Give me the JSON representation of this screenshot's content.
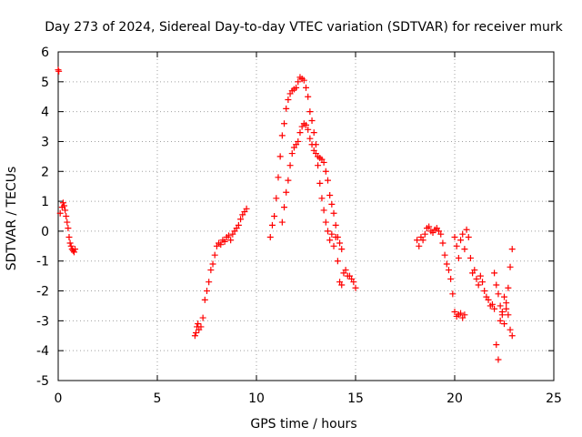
{
  "chart_data": {
    "type": "scatter",
    "title": "Day 273 of 2024, Sidereal Day-to-day VTEC variation (SDTVAR) for receiver murk",
    "xlabel": "GPS time / hours",
    "ylabel": "SDTVAR / TECUs",
    "xlim": [
      0,
      25
    ],
    "ylim": [
      -5,
      6
    ],
    "xticks": [
      0,
      5,
      10,
      15,
      20,
      25
    ],
    "xtick_labels": [
      "0",
      "5",
      "10",
      "15",
      "20",
      "25"
    ],
    "yticks": [
      -5,
      -4,
      -3,
      -2,
      -1,
      0,
      1,
      2,
      3,
      4,
      5,
      6
    ],
    "ytick_labels": [
      "-5",
      "-4",
      "-3",
      "-2",
      "-1",
      "0",
      "1",
      "2",
      "3",
      "4",
      "5",
      "6"
    ],
    "grid": true,
    "marker": "+",
    "color": "#ff0000",
    "series": [
      {
        "name": "SDTVAR",
        "x": [
          0.0,
          0.03,
          0.1,
          0.2,
          0.25,
          0.3,
          0.35,
          0.4,
          0.45,
          0.5,
          0.55,
          0.6,
          0.65,
          0.7,
          0.75,
          0.8,
          0.85,
          6.9,
          6.95,
          7.0,
          7.05,
          7.1,
          7.2,
          7.3,
          7.4,
          7.5,
          7.6,
          7.7,
          7.8,
          7.9,
          8.0,
          8.1,
          8.2,
          8.3,
          8.4,
          8.5,
          8.6,
          8.7,
          8.8,
          8.9,
          9.0,
          9.1,
          9.2,
          9.3,
          9.4,
          9.5,
          10.7,
          10.8,
          10.9,
          11.0,
          11.1,
          11.2,
          11.3,
          11.4,
          11.5,
          11.6,
          11.7,
          11.8,
          11.9,
          12.0,
          12.1,
          12.2,
          12.3,
          12.4,
          12.5,
          12.6,
          12.7,
          12.8,
          12.9,
          13.0,
          13.1,
          13.2,
          13.3,
          13.4,
          13.5,
          13.6,
          13.7,
          13.8,
          13.9,
          14.0,
          14.1,
          14.2,
          14.3,
          14.4,
          14.5,
          14.6,
          14.7,
          14.8,
          14.9,
          15.0,
          11.3,
          11.4,
          11.5,
          11.6,
          11.7,
          11.8,
          11.9,
          12.0,
          12.1,
          12.2,
          12.3,
          12.4,
          12.5,
          12.6,
          12.7,
          12.8,
          12.9,
          13.0,
          13.1,
          13.2,
          13.3,
          13.4,
          13.5,
          13.6,
          13.7,
          13.8,
          13.9,
          14.0,
          14.1,
          14.2,
          14.3,
          18.1,
          18.2,
          18.3,
          18.4,
          18.5,
          18.6,
          18.7,
          18.8,
          18.9,
          19.0,
          19.1,
          19.2,
          19.3,
          19.4,
          19.5,
          19.6,
          19.7,
          19.8,
          19.9,
          20.0,
          20.1,
          20.2,
          20.3,
          20.4,
          20.5,
          20.0,
          20.1,
          20.2,
          20.3,
          20.4,
          20.5,
          20.6,
          20.7,
          20.8,
          20.9,
          21.0,
          21.1,
          21.2,
          21.3,
          21.4,
          21.5,
          21.6,
          21.7,
          21.8,
          21.9,
          22.0,
          22.1,
          22.2,
          22.3,
          22.4,
          22.5,
          22.6,
          22.7,
          22.8,
          22.9,
          22.0,
          22.1,
          22.2,
          22.3,
          22.4,
          22.5,
          22.6,
          22.7,
          22.8,
          22.9
        ],
        "y": [
          5.4,
          5.35,
          0.6,
          0.8,
          0.95,
          0.85,
          0.7,
          0.5,
          0.3,
          0.1,
          -0.2,
          -0.4,
          -0.5,
          -0.6,
          -0.65,
          -0.7,
          -0.6,
          -3.5,
          -3.4,
          -3.2,
          -3.1,
          -3.3,
          -3.2,
          -2.9,
          -2.3,
          -2.0,
          -1.7,
          -1.3,
          -1.1,
          -0.8,
          -0.5,
          -0.4,
          -0.45,
          -0.3,
          -0.35,
          -0.2,
          -0.15,
          -0.3,
          -0.1,
          0.0,
          0.1,
          0.2,
          0.4,
          0.55,
          0.65,
          0.75,
          -0.2,
          0.2,
          0.5,
          1.1,
          1.8,
          2.5,
          3.2,
          3.6,
          4.1,
          4.4,
          4.6,
          4.7,
          4.75,
          4.8,
          5.0,
          5.15,
          5.1,
          5.05,
          4.8,
          4.5,
          4.0,
          3.7,
          3.3,
          2.9,
          2.2,
          1.6,
          1.1,
          0.7,
          0.3,
          0.0,
          -0.3,
          -0.1,
          -0.5,
          -0.2,
          -1.0,
          -1.7,
          -1.8,
          -1.4,
          -1.3,
          -1.5,
          -1.5,
          -1.6,
          -1.7,
          -1.9,
          0.3,
          0.8,
          1.3,
          1.7,
          2.2,
          2.6,
          2.8,
          2.9,
          3.0,
          3.3,
          3.5,
          3.6,
          3.55,
          3.4,
          3.1,
          2.9,
          2.7,
          2.6,
          2.5,
          2.45,
          2.4,
          2.3,
          2.0,
          1.7,
          1.2,
          0.9,
          0.6,
          0.2,
          -0.2,
          -0.4,
          -0.6,
          -0.3,
          -0.5,
          -0.2,
          -0.3,
          -0.1,
          0.1,
          0.15,
          0.0,
          -0.05,
          0.05,
          0.1,
          0.0,
          -0.1,
          -0.4,
          -0.8,
          -1.1,
          -1.3,
          -1.6,
          -2.1,
          -2.7,
          -2.85,
          -2.8,
          -2.75,
          -2.9,
          -2.8,
          -0.2,
          -0.5,
          -0.9,
          -0.3,
          -0.1,
          -0.6,
          0.05,
          -0.2,
          -0.9,
          -1.4,
          -1.3,
          -1.6,
          -1.8,
          -1.5,
          -1.7,
          -2.0,
          -2.2,
          -2.3,
          -2.5,
          -2.45,
          -2.6,
          -3.8,
          -4.3,
          -3.0,
          -2.7,
          -2.2,
          -2.6,
          -2.8,
          -3.3,
          -3.5,
          -1.4,
          -1.8,
          -2.1,
          -2.5,
          -2.8,
          -3.1,
          -2.4,
          -1.9,
          -1.2,
          -0.6
        ]
      }
    ]
  }
}
